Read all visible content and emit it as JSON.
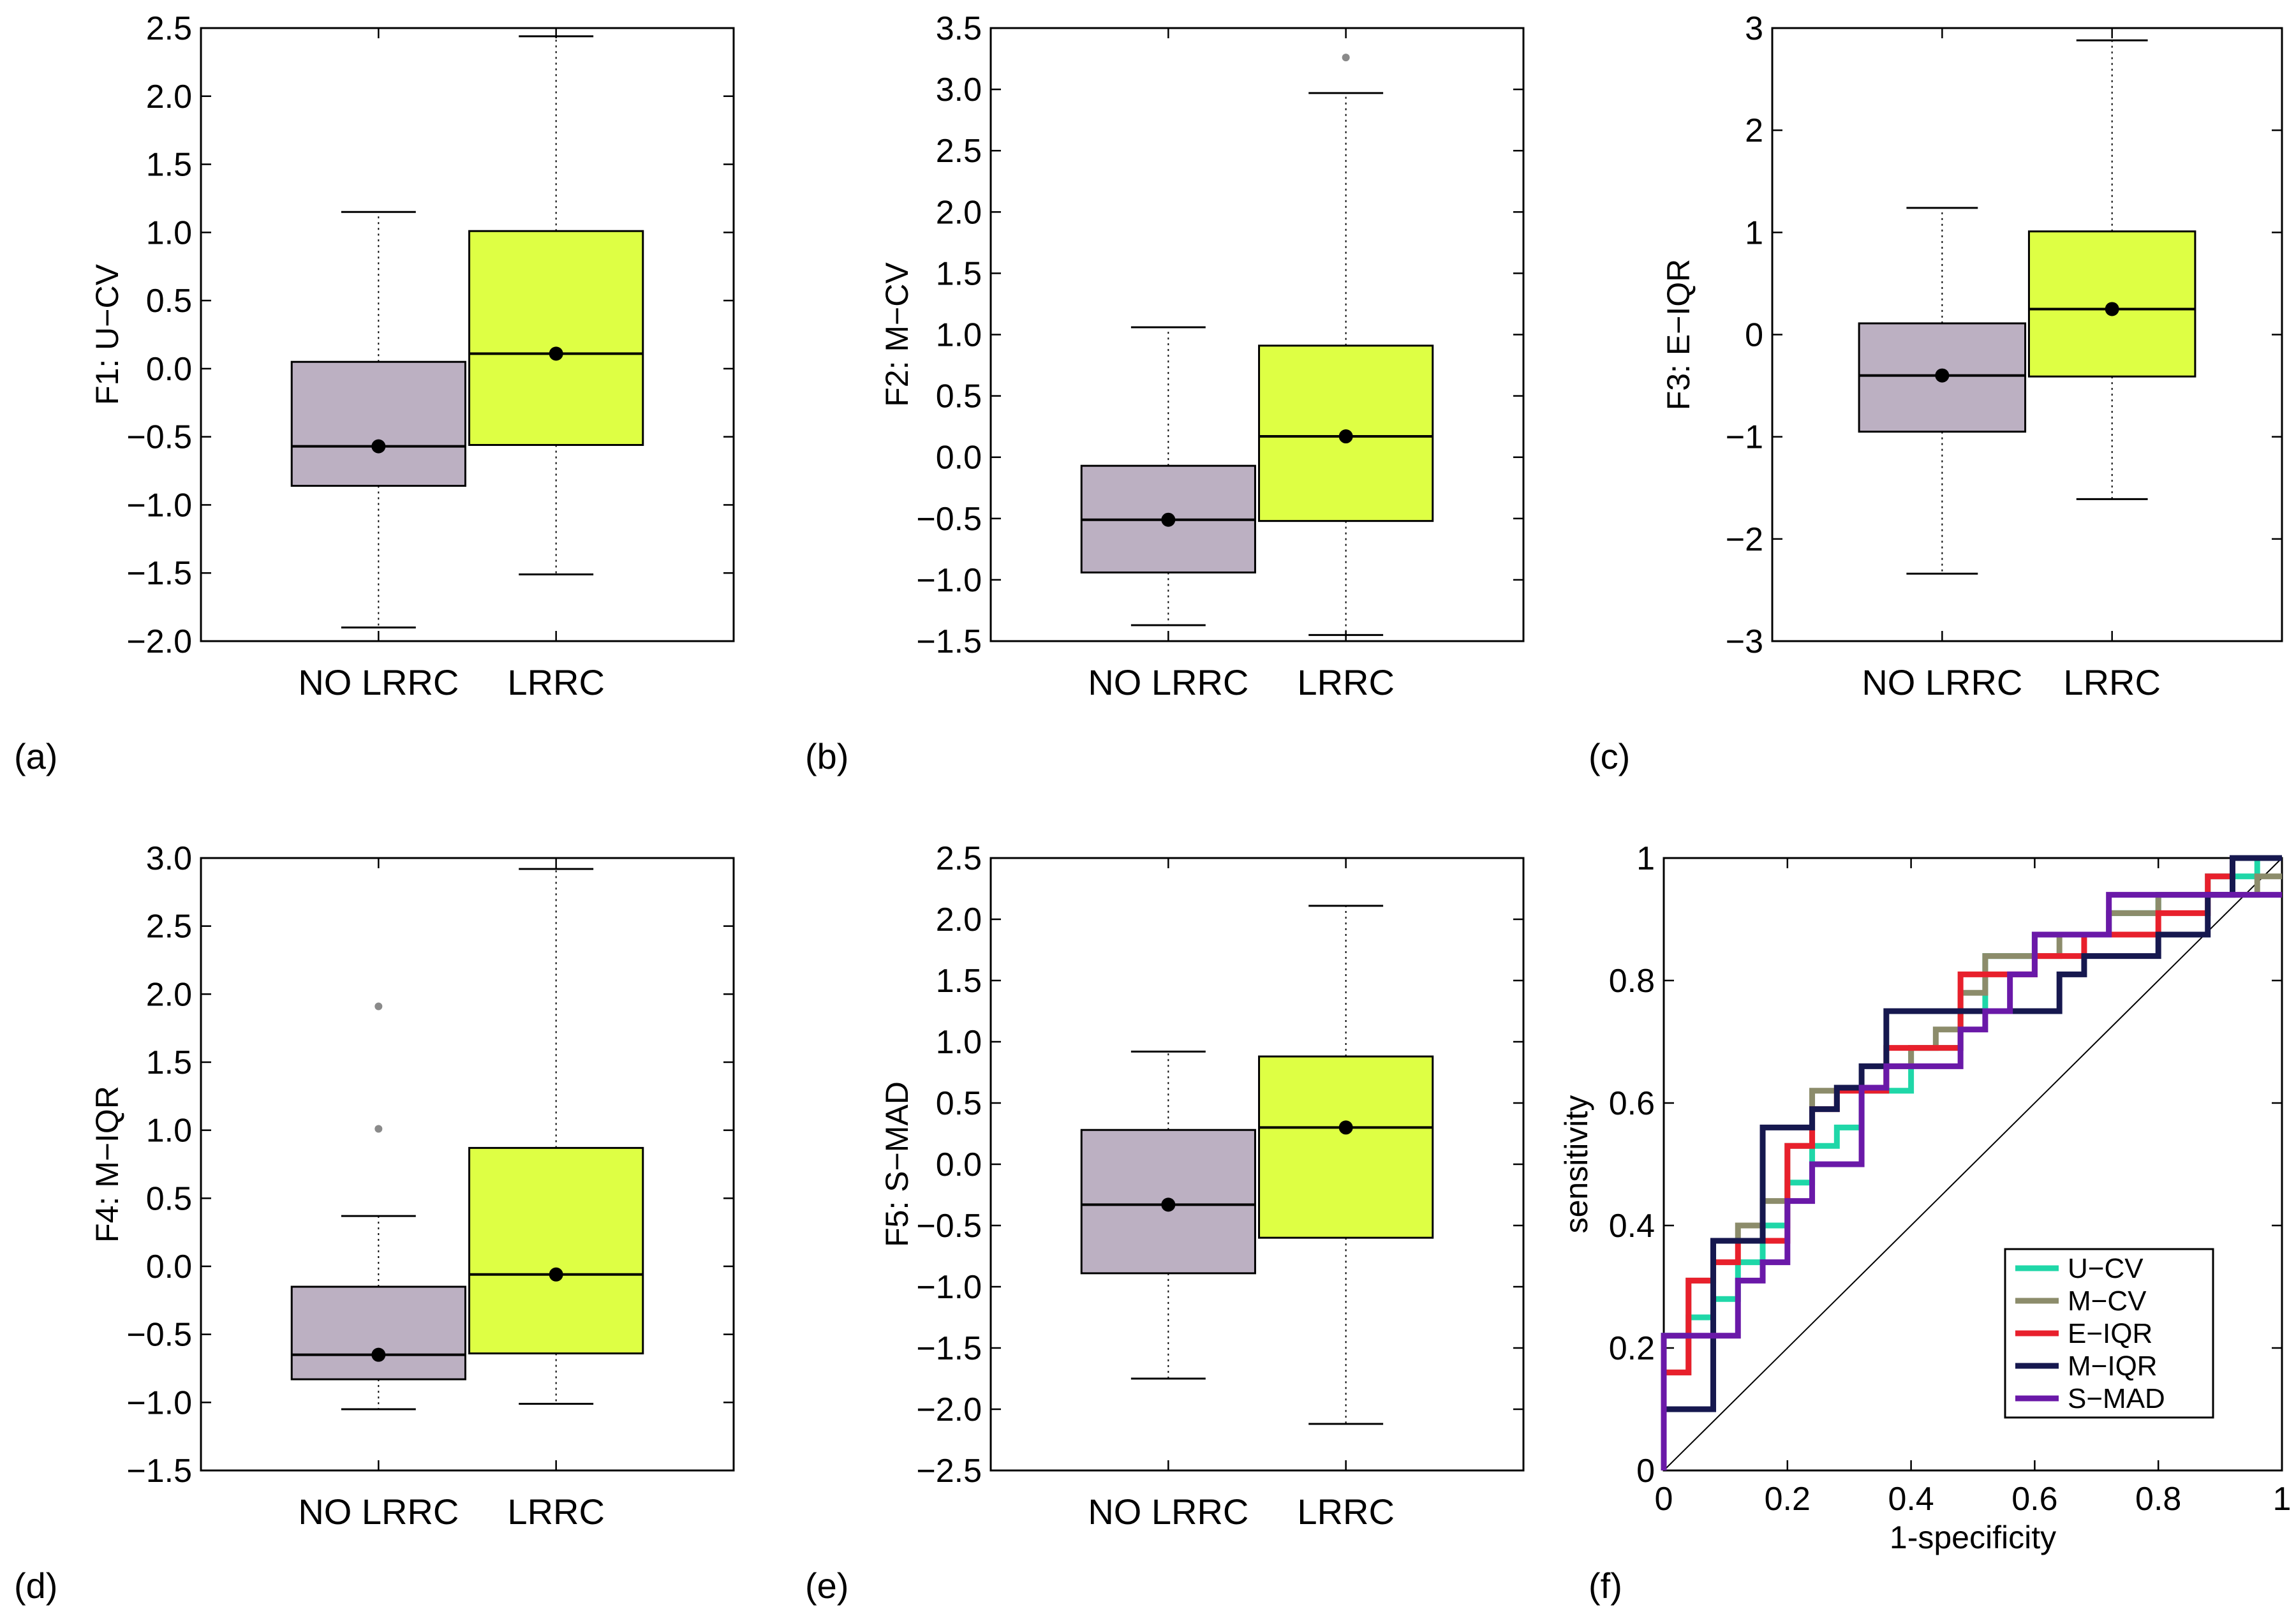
{
  "chart_data": [
    {
      "type": "box",
      "panel_label": "(a)",
      "ylabel": "F1: U−CV",
      "ylim": [
        -2.0,
        2.5
      ],
      "yticks": [
        -2.0,
        -1.5,
        -1.0,
        -0.5,
        0.0,
        0.5,
        1.0,
        1.5,
        2.0,
        2.5
      ],
      "ytick_labels": [
        "−2.0",
        "−1.5",
        "−1.0",
        "−0.5",
        "0.0",
        "0.5",
        "1.0",
        "1.5",
        "2.0",
        "2.5"
      ],
      "categories": [
        "NO LRRC",
        "LRRC"
      ],
      "boxes": [
        {
          "name": "NO LRRC",
          "whisker_low": -1.9,
          "q1": -0.86,
          "median": -0.57,
          "q3": 0.05,
          "whisker_high": 1.15,
          "mean": -0.57,
          "outliers": [],
          "color": "#bcb0c2"
        },
        {
          "name": "LRRC",
          "whisker_low": -1.51,
          "q1": -0.56,
          "median": 0.11,
          "q3": 1.01,
          "whisker_high": 2.44,
          "mean": 0.11,
          "outliers": [],
          "color": "#deff44"
        }
      ]
    },
    {
      "type": "box",
      "panel_label": "(b)",
      "ylabel": "F2: M−CV",
      "ylim": [
        -1.5,
        3.5
      ],
      "yticks": [
        -1.5,
        -1.0,
        -0.5,
        0.0,
        0.5,
        1.0,
        1.5,
        2.0,
        2.5,
        3.0,
        3.5
      ],
      "ytick_labels": [
        "−1.5",
        "−1.0",
        "−0.5",
        "0.0",
        "0.5",
        "1.0",
        "1.5",
        "2.0",
        "2.5",
        "3.0",
        "3.5"
      ],
      "categories": [
        "NO LRRC",
        "LRRC"
      ],
      "boxes": [
        {
          "name": "NO LRRC",
          "whisker_low": -1.37,
          "q1": -0.94,
          "median": -0.51,
          "q3": -0.07,
          "whisker_high": 1.06,
          "mean": -0.51,
          "outliers": [],
          "color": "#bcb0c2"
        },
        {
          "name": "LRRC",
          "whisker_low": -1.45,
          "q1": -0.52,
          "median": 0.17,
          "q3": 0.91,
          "whisker_high": 2.97,
          "mean": 0.17,
          "outliers": [
            3.26
          ],
          "color": "#deff44"
        }
      ]
    },
    {
      "type": "box",
      "panel_label": "(c)",
      "ylabel": "F3: E−IQR",
      "ylim": [
        -3,
        3
      ],
      "yticks": [
        -3,
        -2,
        -1,
        0,
        1,
        2,
        3
      ],
      "ytick_labels": [
        "−3",
        "−2",
        "−1",
        "0",
        "1",
        "2",
        "3"
      ],
      "categories": [
        "NO LRRC",
        "LRRC"
      ],
      "boxes": [
        {
          "name": "NO LRRC",
          "whisker_low": -2.34,
          "q1": -0.95,
          "median": -0.4,
          "q3": 0.11,
          "whisker_high": 1.24,
          "mean": -0.4,
          "outliers": [],
          "color": "#bcb0c2"
        },
        {
          "name": "LRRC",
          "whisker_low": -1.61,
          "q1": -0.41,
          "median": 0.25,
          "q3": 1.01,
          "whisker_high": 2.88,
          "mean": 0.25,
          "outliers": [],
          "color": "#deff44"
        }
      ]
    },
    {
      "type": "box",
      "panel_label": "(d)",
      "ylabel": "F4: M−IQR",
      "ylim": [
        -1.5,
        3.0
      ],
      "yticks": [
        -1.5,
        -1.0,
        -0.5,
        0.0,
        0.5,
        1.0,
        1.5,
        2.0,
        2.5,
        3.0
      ],
      "ytick_labels": [
        "−1.5",
        "−1.0",
        "−0.5",
        "0.0",
        "0.5",
        "1.0",
        "1.5",
        "2.0",
        "2.5",
        "3.0"
      ],
      "categories": [
        "NO LRRC",
        "LRRC"
      ],
      "boxes": [
        {
          "name": "NO LRRC",
          "whisker_low": -1.05,
          "q1": -0.83,
          "median": -0.65,
          "q3": -0.15,
          "whisker_high": 0.37,
          "mean": -0.65,
          "outliers": [
            1.01,
            1.91
          ],
          "color": "#bcb0c2"
        },
        {
          "name": "LRRC",
          "whisker_low": -1.01,
          "q1": -0.64,
          "median": -0.06,
          "q3": 0.87,
          "whisker_high": 2.92,
          "mean": -0.06,
          "outliers": [],
          "color": "#deff44"
        }
      ]
    },
    {
      "type": "box",
      "panel_label": "(e)",
      "ylabel": "F5: S−MAD",
      "ylim": [
        -2.5,
        2.5
      ],
      "yticks": [
        -2.5,
        -2.0,
        -1.5,
        -1.0,
        -0.5,
        0.0,
        0.5,
        1.0,
        1.5,
        2.0,
        2.5
      ],
      "ytick_labels": [
        "−2.5",
        "−2.0",
        "−1.5",
        "−1.0",
        "−0.5",
        "0.0",
        "0.5",
        "1.0",
        "1.5",
        "2.0",
        "2.5"
      ],
      "categories": [
        "NO LRRC",
        "LRRC"
      ],
      "boxes": [
        {
          "name": "NO LRRC",
          "whisker_low": -1.75,
          "q1": -0.89,
          "median": -0.33,
          "q3": 0.28,
          "whisker_high": 0.92,
          "mean": -0.33,
          "outliers": [],
          "color": "#bcb0c2"
        },
        {
          "name": "LRRC",
          "whisker_low": -2.12,
          "q1": -0.6,
          "median": 0.3,
          "q3": 0.88,
          "whisker_high": 2.11,
          "mean": 0.3,
          "outliers": [],
          "color": "#deff44"
        }
      ]
    },
    {
      "type": "line",
      "subtype": "roc",
      "panel_label": "(f)",
      "xlabel": "1-specificity",
      "ylabel": "sensitivity",
      "xlim": [
        0,
        1
      ],
      "ylim": [
        0,
        1
      ],
      "xticks": [
        0,
        0.2,
        0.4,
        0.6,
        0.8,
        1
      ],
      "yticks": [
        0,
        0.2,
        0.4,
        0.6,
        0.8,
        1
      ],
      "xtick_labels": [
        "0",
        "0.2",
        "0.4",
        "0.6",
        "0.8",
        "1"
      ],
      "ytick_labels": [
        "0",
        "0.2",
        "0.4",
        "0.6",
        "0.8",
        "1"
      ],
      "legend_position": "bottom-right",
      "diagonal": true,
      "series": [
        {
          "name": "U−CV",
          "color": "#1fd7a8",
          "x": [
            0,
            0,
            0.04,
            0.04,
            0.08,
            0.08,
            0.12,
            0.12,
            0.16,
            0.16,
            0.2,
            0.2,
            0.24,
            0.24,
            0.28,
            0.28,
            0.32,
            0.32,
            0.4,
            0.4,
            0.48,
            0.48,
            0.52,
            0.52,
            0.6,
            0.6,
            0.64,
            0.64,
            0.72,
            0.72,
            0.8,
            0.8,
            0.88,
            0.88,
            0.92,
            0.92,
            0.96,
            0.96,
            1
          ],
          "y": [
            0,
            0.22,
            0.22,
            0.25,
            0.25,
            0.28,
            0.28,
            0.34,
            0.34,
            0.4,
            0.4,
            0.47,
            0.47,
            0.53,
            0.53,
            0.56,
            0.56,
            0.62,
            0.62,
            0.69,
            0.69,
            0.75,
            0.75,
            0.84,
            0.84,
            0.875,
            0.875,
            0.875,
            0.875,
            0.91,
            0.91,
            0.94,
            0.94,
            0.97,
            0.97,
            0.97,
            0.97,
            1,
            1
          ]
        },
        {
          "name": "M−CV",
          "color": "#8c8c6b",
          "x": [
            0,
            0,
            0.04,
            0.04,
            0.08,
            0.08,
            0.12,
            0.12,
            0.16,
            0.16,
            0.2,
            0.2,
            0.24,
            0.24,
            0.28,
            0.28,
            0.36,
            0.36,
            0.4,
            0.4,
            0.44,
            0.44,
            0.48,
            0.48,
            0.52,
            0.52,
            0.64,
            0.64,
            0.72,
            0.72,
            0.8,
            0.8,
            0.96,
            0.96,
            1
          ],
          "y": [
            0,
            0.16,
            0.16,
            0.31,
            0.31,
            0.375,
            0.375,
            0.4,
            0.4,
            0.44,
            0.44,
            0.53,
            0.53,
            0.62,
            0.62,
            0.625,
            0.625,
            0.66,
            0.66,
            0.69,
            0.69,
            0.72,
            0.72,
            0.78,
            0.78,
            0.84,
            0.84,
            0.875,
            0.875,
            0.91,
            0.91,
            0.94,
            0.94,
            0.97,
            0.97
          ]
        },
        {
          "name": "E−IQR",
          "color": "#e8202c",
          "x": [
            0,
            0,
            0.04,
            0.04,
            0.08,
            0.08,
            0.12,
            0.12,
            0.16,
            0.16,
            0.2,
            0.2,
            0.24,
            0.24,
            0.28,
            0.28,
            0.36,
            0.36,
            0.48,
            0.48,
            0.56,
            0.56,
            0.6,
            0.6,
            0.64,
            0.64,
            0.68,
            0.68,
            0.72,
            0.72,
            0.8,
            0.8,
            0.88,
            0.88,
            0.92,
            0.92,
            1
          ],
          "y": [
            0,
            0.16,
            0.16,
            0.31,
            0.31,
            0.34,
            0.34,
            0.375,
            0.375,
            0.375,
            0.375,
            0.53,
            0.53,
            0.59,
            0.59,
            0.62,
            0.62,
            0.69,
            0.69,
            0.81,
            0.81,
            0.81,
            0.81,
            0.84,
            0.84,
            0.84,
            0.84,
            0.875,
            0.875,
            0.875,
            0.875,
            0.91,
            0.91,
            0.97,
            0.97,
            1,
            1
          ]
        },
        {
          "name": "M−IQR",
          "color": "#16184f",
          "x": [
            0,
            0,
            0.08,
            0.08,
            0.16,
            0.16,
            0.24,
            0.24,
            0.28,
            0.28,
            0.32,
            0.32,
            0.36,
            0.36,
            0.48,
            0.48,
            0.64,
            0.64,
            0.68,
            0.68,
            0.72,
            0.72,
            0.8,
            0.8,
            0.88,
            0.88,
            0.92,
            0.92,
            0.96,
            0.96,
            1
          ],
          "y": [
            0,
            0.1,
            0.1,
            0.375,
            0.375,
            0.56,
            0.56,
            0.59,
            0.59,
            0.625,
            0.625,
            0.66,
            0.66,
            0.75,
            0.75,
            0.75,
            0.75,
            0.81,
            0.81,
            0.84,
            0.84,
            0.84,
            0.84,
            0.875,
            0.875,
            0.94,
            0.94,
            1,
            1,
            1,
            1
          ]
        },
        {
          "name": "S−MAD",
          "color": "#6a19a8",
          "x": [
            0,
            0,
            0.08,
            0.08,
            0.12,
            0.12,
            0.16,
            0.16,
            0.2,
            0.2,
            0.24,
            0.24,
            0.28,
            0.28,
            0.32,
            0.32,
            0.36,
            0.36,
            0.44,
            0.44,
            0.48,
            0.48,
            0.52,
            0.52,
            0.56,
            0.56,
            0.6,
            0.6,
            0.72,
            0.72,
            0.76,
            0.76,
            1
          ],
          "y": [
            0,
            0.22,
            0.22,
            0.22,
            0.22,
            0.31,
            0.31,
            0.34,
            0.34,
            0.44,
            0.44,
            0.5,
            0.5,
            0.5,
            0.5,
            0.625,
            0.625,
            0.66,
            0.66,
            0.66,
            0.66,
            0.72,
            0.72,
            0.75,
            0.75,
            0.81,
            0.81,
            0.875,
            0.875,
            0.94,
            0.94,
            0.94,
            0.94
          ]
        }
      ]
    }
  ]
}
